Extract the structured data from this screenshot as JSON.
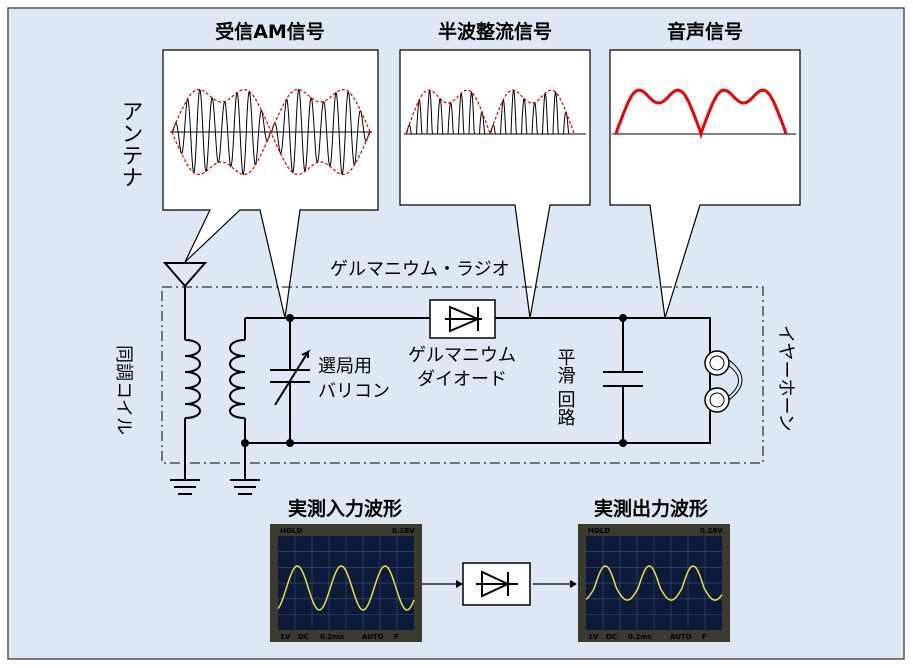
{
  "title_am": "受信AM信号",
  "title_half": "半波整流信号",
  "title_audio": "音声信号",
  "antenna": "アンテナ",
  "radio": "ゲルマニウム・ラジオ",
  "tuning_coil": "同調コイル",
  "varicon": [
    "選局用",
    "バリコン"
  ],
  "diode": [
    "ゲルマニウム",
    "ダイオード"
  ],
  "smoothing": [
    "平滑",
    "回路"
  ],
  "earphone": "イヤーホーン",
  "measured_in": "実測入力波形",
  "measured_out": "実測出力波形",
  "scope": {
    "hold": "HOLD",
    "volt": "0.28V",
    "ch": "1V",
    "dc": "DC",
    "time": "0.2ms",
    "auto": "AUTO",
    "f": "F"
  }
}
